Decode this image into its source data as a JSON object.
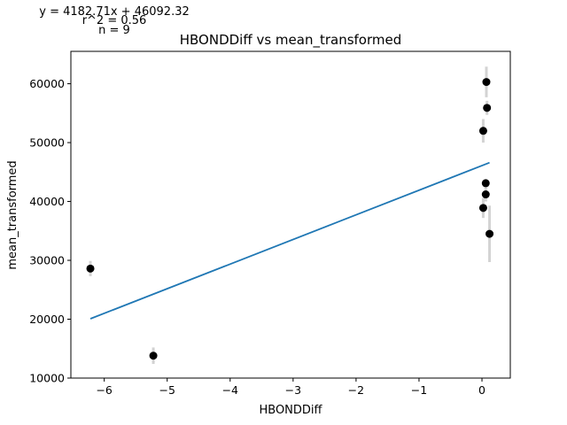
{
  "annotations": {
    "equation": "y = 4182.71x + 46092.32",
    "r_squared": "r^2 = 0.56",
    "n": "n = 9"
  },
  "chart_data": {
    "type": "scatter",
    "title": "HBONDDiff vs mean_transformed",
    "xlabel": "HBONDDiff",
    "ylabel": "mean_transformed",
    "xlim": [
      -6.53,
      0.45
    ],
    "ylim": [
      10000,
      65500
    ],
    "xticks": [
      -6,
      -5,
      -4,
      -3,
      -2,
      -1,
      0
    ],
    "xtick_labels": [
      "−6",
      "−5",
      "−4",
      "−3",
      "−2",
      "−1",
      "0"
    ],
    "yticks": [
      10000,
      20000,
      30000,
      40000,
      50000,
      60000
    ],
    "ytick_labels": [
      "10000",
      "20000",
      "30000",
      "40000",
      "50000",
      "60000"
    ],
    "grid": false,
    "points": [
      {
        "x": -6.22,
        "y": 28600,
        "err": 1300
      },
      {
        "x": -5.22,
        "y": 13800,
        "err": 1400
      },
      {
        "x": 0.02,
        "y": 38900,
        "err": 1700
      },
      {
        "x": 0.02,
        "y": 52000,
        "err": 2000
      },
      {
        "x": 0.06,
        "y": 41200,
        "err": 1200
      },
      {
        "x": 0.06,
        "y": 43100,
        "err": 700
      },
      {
        "x": 0.07,
        "y": 60300,
        "err": 2600
      },
      {
        "x": 0.08,
        "y": 55900,
        "err": 1200
      },
      {
        "x": 0.12,
        "y": 34500,
        "err": 4800
      }
    ],
    "fit_line": {
      "slope": 4182.71,
      "intercept": 46092.32,
      "x_range": [
        -6.22,
        0.12
      ]
    },
    "colors": {
      "points": "#000000",
      "error_bars": "#d3d3d3",
      "fit_line": "#1f77b4"
    }
  }
}
